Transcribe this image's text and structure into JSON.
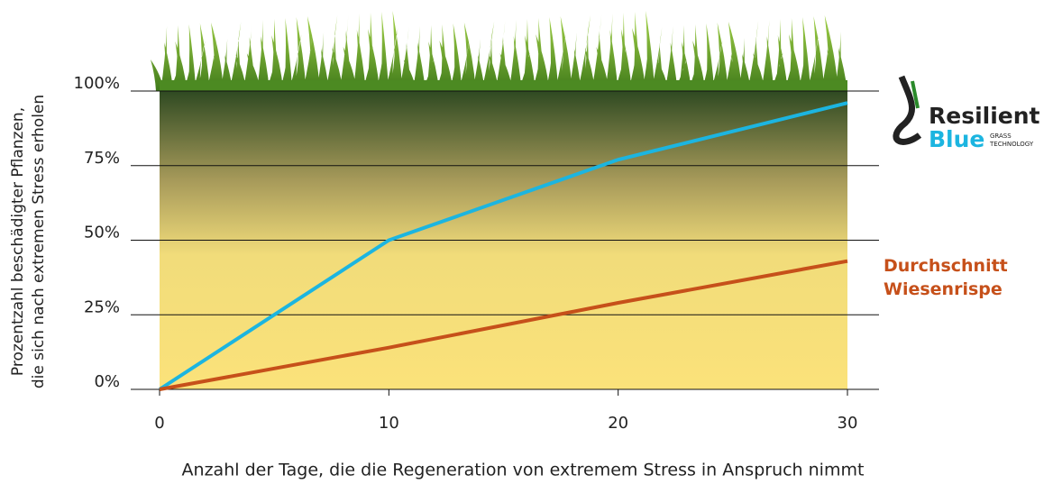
{
  "chart_data": {
    "type": "line",
    "ylabel": [
      "Prozentzahl beschädigter Pflanzen,",
      "die sich nach extremen Stress erholen"
    ],
    "xlabel": "Anzahl der Tage, die die Regeneration von extremem Stress in Anspruch nimmt",
    "x": [
      0,
      10,
      20,
      30
    ],
    "series": [
      {
        "color": "#1cb5e0",
        "values": [
          0,
          50,
          77,
          96
        ]
      },
      {
        "name": "Durchschnitt Wiesenrispe",
        "color": "#c6501a",
        "values": [
          0,
          14,
          29,
          43
        ]
      }
    ],
    "xlim": [
      0,
      30
    ],
    "xticks": [
      0,
      10,
      20,
      30
    ],
    "ylim": [
      0,
      100
    ],
    "yticks": [
      {
        "value": 0,
        "label": "0%"
      },
      {
        "value": 25,
        "label": "25%"
      },
      {
        "value": 50,
        "label": "50%"
      },
      {
        "value": 75,
        "label": "75%"
      },
      {
        "value": 100,
        "label": "100%"
      }
    ],
    "grid": true,
    "logo": {
      "line1": "Resilient",
      "line2": "Blue",
      "tag1": "GRASS",
      "tag2": "TECHNOLOGY"
    }
  }
}
